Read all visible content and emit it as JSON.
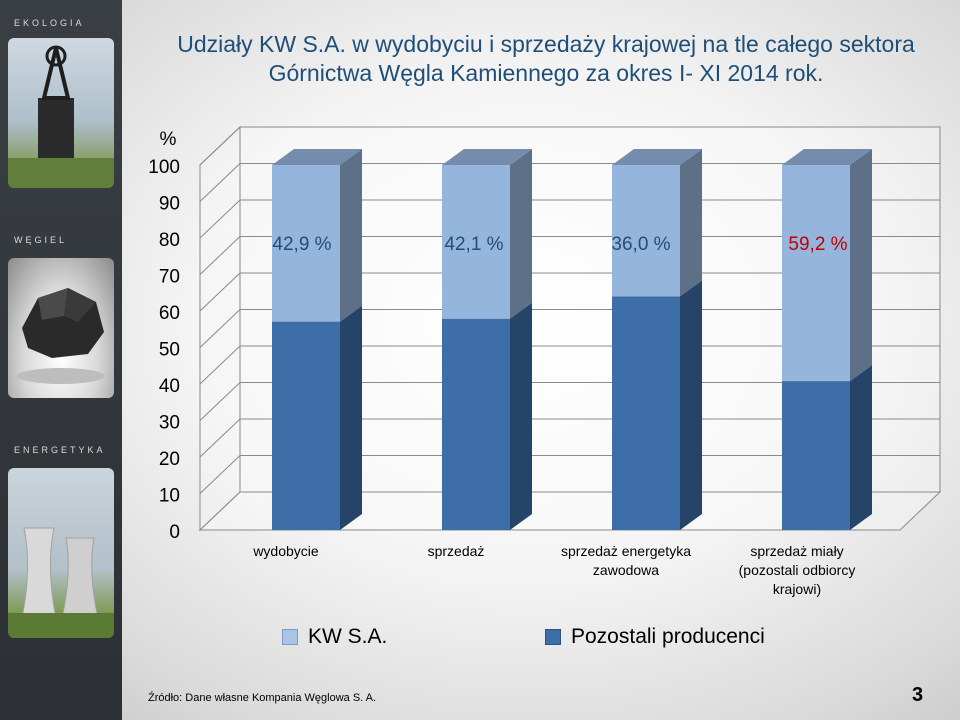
{
  "sidebar": {
    "sections": [
      {
        "label": "EKOLOGIA",
        "icon": "mine-tower-icon"
      },
      {
        "label": "WĘGIEL",
        "icon": "coal-lump-icon"
      },
      {
        "label": "ENERGETYKA",
        "icon": "cooling-tower-icon"
      }
    ]
  },
  "title": {
    "line1": "Udziały KW S.A. w wydobyciu i sprzedaży krajowej na tle całego sektora",
    "line2": "Górnictwa Węgla Kamiennego za okres I- XI 2014 rok."
  },
  "chart_data": {
    "type": "bar",
    "stacked": true,
    "three_d": true,
    "ylabel": "%",
    "ylim": [
      0,
      100
    ],
    "yticks": [
      "0",
      "10",
      "20",
      "30",
      "40",
      "50",
      "60",
      "70",
      "80",
      "90",
      "100"
    ],
    "categories": [
      [
        "wydobycie"
      ],
      [
        "sprzedaż"
      ],
      [
        "sprzedaż energetyka",
        "zawodowa"
      ],
      [
        "sprzedaż miały",
        "(pozostali odbiorcy",
        "krajowi)"
      ]
    ],
    "series": [
      {
        "name": "Pozostali producenci",
        "values": [
          57.1,
          57.9,
          64.0,
          40.8
        ],
        "color": "#3d6ea8"
      },
      {
        "name": "KW S.A.",
        "values": [
          42.9,
          42.1,
          36.0,
          59.2
        ],
        "color": "#96b5dc"
      }
    ],
    "data_labels": [
      "42,9 %",
      "42,1 %",
      "36,0 %",
      "59,2 %"
    ],
    "data_label_colors": [
      "#1f4e79",
      "#1f4e79",
      "#1f4e79",
      "#c00000"
    ],
    "legend": {
      "position": "bottom",
      "order": [
        "KW S.A.",
        "Pozostali producenci"
      ]
    },
    "grid": true
  },
  "footer": {
    "source": "Źródło: Dane własne Kompania Węglowa S. A.",
    "page_number": "3"
  }
}
